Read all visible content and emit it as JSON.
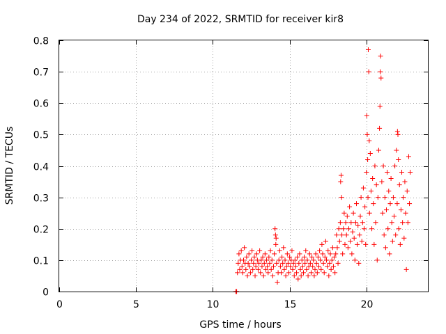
{
  "chart_data": {
    "type": "scatter",
    "title": "Day 234 of 2022, SRMTID for receiver kir8",
    "xlabel": "GPS time / hours",
    "ylabel": "SRMTID / TECUs",
    "xlim": [
      0,
      24
    ],
    "ylim": [
      0,
      0.8
    ],
    "xticks": [
      0,
      5,
      10,
      15,
      20
    ],
    "xtick_labels": [
      "0",
      "5",
      "10",
      "15",
      "20"
    ],
    "yticks": [
      0,
      0.1,
      0.2,
      0.3,
      0.4,
      0.5,
      0.6,
      0.7,
      0.8
    ],
    "ytick_labels": [
      "0",
      "0.1",
      "0.2",
      "0.3",
      "0.4",
      "0.5",
      "0.6",
      "0.7",
      "0.8"
    ],
    "grid": true,
    "marker": "plus",
    "color": "#ff0000",
    "series": [
      {
        "name": "SRMTID",
        "points": [
          [
            11.5,
            0.0
          ],
          [
            11.52,
            0.0
          ],
          [
            11.55,
            0.0
          ],
          [
            11.6,
            0.06
          ],
          [
            11.65,
            0.09
          ],
          [
            11.7,
            0.12
          ],
          [
            11.75,
            0.07
          ],
          [
            11.8,
            0.1
          ],
          [
            11.85,
            0.13
          ],
          [
            11.9,
            0.08
          ],
          [
            11.95,
            0.06
          ],
          [
            12.0,
            0.1
          ],
          [
            12.05,
            0.14
          ],
          [
            12.1,
            0.09
          ],
          [
            12.15,
            0.07
          ],
          [
            12.2,
            0.11
          ],
          [
            12.25,
            0.05
          ],
          [
            12.3,
            0.09
          ],
          [
            12.35,
            0.12
          ],
          [
            12.4,
            0.08
          ],
          [
            12.45,
            0.06
          ],
          [
            12.5,
            0.1
          ],
          [
            12.55,
            0.13
          ],
          [
            12.6,
            0.07
          ],
          [
            12.65,
            0.09
          ],
          [
            12.7,
            0.11
          ],
          [
            12.75,
            0.05
          ],
          [
            12.8,
            0.08
          ],
          [
            12.85,
            0.12
          ],
          [
            12.9,
            0.1
          ],
          [
            12.95,
            0.07
          ],
          [
            13.0,
            0.09
          ],
          [
            13.05,
            0.13
          ],
          [
            13.1,
            0.06
          ],
          [
            13.15,
            0.1
          ],
          [
            13.2,
            0.08
          ],
          [
            13.25,
            0.11
          ],
          [
            13.3,
            0.05
          ],
          [
            13.35,
            0.09
          ],
          [
            13.4,
            0.12
          ],
          [
            13.45,
            0.07
          ],
          [
            13.5,
            0.1
          ],
          [
            13.55,
            0.08
          ],
          [
            13.6,
            0.06
          ],
          [
            13.65,
            0.11
          ],
          [
            13.7,
            0.09
          ],
          [
            13.75,
            0.13
          ],
          [
            13.8,
            0.07
          ],
          [
            13.85,
            0.1
          ],
          [
            13.9,
            0.05
          ],
          [
            13.95,
            0.08
          ],
          [
            14.0,
            0.12
          ],
          [
            14.05,
            0.2
          ],
          [
            14.08,
            0.18
          ],
          [
            14.1,
            0.15
          ],
          [
            14.12,
            0.17
          ],
          [
            14.15,
            0.09
          ],
          [
            14.2,
            0.03
          ],
          [
            14.25,
            0.06
          ],
          [
            14.3,
            0.1
          ],
          [
            14.35,
            0.13
          ],
          [
            14.4,
            0.08
          ],
          [
            14.45,
            0.06
          ],
          [
            14.5,
            0.11
          ],
          [
            14.55,
            0.09
          ],
          [
            14.6,
            0.14
          ],
          [
            14.65,
            0.07
          ],
          [
            14.7,
            0.1
          ],
          [
            14.75,
            0.05
          ],
          [
            14.8,
            0.08
          ],
          [
            14.85,
            0.12
          ],
          [
            14.9,
            0.09
          ],
          [
            14.95,
            0.06
          ],
          [
            15.0,
            0.11
          ],
          [
            15.05,
            0.08
          ],
          [
            15.1,
            0.1
          ],
          [
            15.15,
            0.13
          ],
          [
            15.2,
            0.07
          ],
          [
            15.25,
            0.09
          ],
          [
            15.3,
            0.05
          ],
          [
            15.35,
            0.1
          ],
          [
            15.4,
            0.08
          ],
          [
            15.45,
            0.06
          ],
          [
            15.5,
            0.11
          ],
          [
            15.55,
            0.04
          ],
          [
            15.6,
            0.09
          ],
          [
            15.65,
            0.12
          ],
          [
            15.7,
            0.07
          ],
          [
            15.75,
            0.05
          ],
          [
            15.8,
            0.1
          ],
          [
            15.85,
            0.08
          ],
          [
            15.9,
            0.06
          ],
          [
            15.95,
            0.11
          ],
          [
            16.0,
            0.09
          ],
          [
            16.05,
            0.13
          ],
          [
            16.1,
            0.07
          ],
          [
            16.15,
            0.1
          ],
          [
            16.2,
            0.05
          ],
          [
            16.25,
            0.08
          ],
          [
            16.3,
            0.12
          ],
          [
            16.35,
            0.09
          ],
          [
            16.4,
            0.06
          ],
          [
            16.45,
            0.11
          ],
          [
            16.5,
            0.08
          ],
          [
            16.55,
            0.1
          ],
          [
            16.6,
            0.05
          ],
          [
            16.65,
            0.07
          ],
          [
            16.7,
            0.12
          ],
          [
            16.75,
            0.09
          ],
          [
            16.8,
            0.06
          ],
          [
            16.85,
            0.11
          ],
          [
            16.9,
            0.08
          ],
          [
            16.95,
            0.13
          ],
          [
            17.0,
            0.1
          ],
          [
            17.05,
            0.07
          ],
          [
            17.1,
            0.15
          ],
          [
            17.15,
            0.12
          ],
          [
            17.2,
            0.09
          ],
          [
            17.25,
            0.06
          ],
          [
            17.3,
            0.11
          ],
          [
            17.35,
            0.16
          ],
          [
            17.4,
            0.1
          ],
          [
            17.45,
            0.08
          ],
          [
            17.5,
            0.13
          ],
          [
            17.55,
            0.05
          ],
          [
            17.6,
            0.09
          ],
          [
            17.65,
            0.12
          ],
          [
            17.7,
            0.07
          ],
          [
            17.75,
            0.1
          ],
          [
            17.8,
            0.14
          ],
          [
            17.85,
            0.08
          ],
          [
            17.9,
            0.11
          ],
          [
            17.95,
            0.06
          ],
          [
            18.0,
            0.12
          ],
          [
            18.05,
            0.18
          ],
          [
            18.1,
            0.14
          ],
          [
            18.15,
            0.09
          ],
          [
            18.2,
            0.2
          ],
          [
            18.25,
            0.16
          ],
          [
            18.3,
            0.22
          ],
          [
            18.32,
            0.35
          ],
          [
            18.35,
            0.37
          ],
          [
            18.38,
            0.3
          ],
          [
            18.4,
            0.18
          ],
          [
            18.45,
            0.12
          ],
          [
            18.5,
            0.2
          ],
          [
            18.55,
            0.25
          ],
          [
            18.6,
            0.15
          ],
          [
            18.65,
            0.22
          ],
          [
            18.7,
            0.18
          ],
          [
            18.75,
            0.24
          ],
          [
            18.8,
            0.14
          ],
          [
            18.85,
            0.2
          ],
          [
            18.9,
            0.27
          ],
          [
            18.95,
            0.16
          ],
          [
            19.0,
            0.22
          ],
          [
            19.05,
            0.12
          ],
          [
            19.1,
            0.19
          ],
          [
            19.15,
            0.25
          ],
          [
            19.2,
            0.17
          ],
          [
            19.25,
            0.1
          ],
          [
            19.3,
            0.22
          ],
          [
            19.35,
            0.28
          ],
          [
            19.4,
            0.15
          ],
          [
            19.45,
            0.21
          ],
          [
            19.5,
            0.09
          ],
          [
            19.55,
            0.18
          ],
          [
            19.6,
            0.24
          ],
          [
            19.65,
            0.3
          ],
          [
            19.7,
            0.16
          ],
          [
            19.75,
            0.22
          ],
          [
            19.8,
            0.33
          ],
          [
            19.85,
            0.2
          ],
          [
            19.9,
            0.27
          ],
          [
            19.95,
            0.15
          ],
          [
            20.0,
            0.38
          ],
          [
            20.02,
            0.56
          ],
          [
            20.05,
            0.5
          ],
          [
            20.08,
            0.42
          ],
          [
            20.1,
            0.3
          ],
          [
            20.12,
            0.77
          ],
          [
            20.15,
            0.7
          ],
          [
            20.18,
            0.48
          ],
          [
            20.2,
            0.25
          ],
          [
            20.25,
            0.44
          ],
          [
            20.3,
            0.32
          ],
          [
            20.35,
            0.2
          ],
          [
            20.4,
            0.36
          ],
          [
            20.45,
            0.28
          ],
          [
            20.5,
            0.15
          ],
          [
            20.55,
            0.4
          ],
          [
            20.6,
            0.22
          ],
          [
            20.65,
            0.34
          ],
          [
            20.7,
            0.1
          ],
          [
            20.75,
            0.3
          ],
          [
            20.8,
            0.45
          ],
          [
            20.85,
            0.52
          ],
          [
            20.88,
            0.59
          ],
          [
            20.9,
            0.7
          ],
          [
            20.92,
            0.75
          ],
          [
            20.95,
            0.68
          ],
          [
            21.0,
            0.35
          ],
          [
            21.05,
            0.25
          ],
          [
            21.1,
            0.4
          ],
          [
            21.15,
            0.18
          ],
          [
            21.2,
            0.3
          ],
          [
            21.25,
            0.14
          ],
          [
            21.3,
            0.26
          ],
          [
            21.35,
            0.38
          ],
          [
            21.4,
            0.2
          ],
          [
            21.45,
            0.32
          ],
          [
            21.5,
            0.12
          ],
          [
            21.55,
            0.28
          ],
          [
            21.6,
            0.36
          ],
          [
            21.65,
            0.22
          ],
          [
            21.7,
            0.16
          ],
          [
            21.75,
            0.3
          ],
          [
            21.8,
            0.24
          ],
          [
            21.85,
            0.4
          ],
          [
            21.9,
            0.18
          ],
          [
            21.95,
            0.45
          ],
          [
            22.0,
            0.28
          ],
          [
            22.02,
            0.51
          ],
          [
            22.05,
            0.5
          ],
          [
            22.08,
            0.42
          ],
          [
            22.1,
            0.2
          ],
          [
            22.15,
            0.34
          ],
          [
            22.2,
            0.15
          ],
          [
            22.25,
            0.26
          ],
          [
            22.3,
            0.38
          ],
          [
            22.35,
            0.22
          ],
          [
            22.4,
            0.3
          ],
          [
            22.45,
            0.17
          ],
          [
            22.5,
            0.35
          ],
          [
            22.55,
            0.25
          ],
          [
            22.6,
            0.07
          ],
          [
            22.65,
            0.32
          ],
          [
            22.7,
            0.22
          ],
          [
            22.75,
            0.43
          ],
          [
            22.8,
            0.28
          ],
          [
            22.85,
            0.38
          ]
        ]
      }
    ]
  }
}
